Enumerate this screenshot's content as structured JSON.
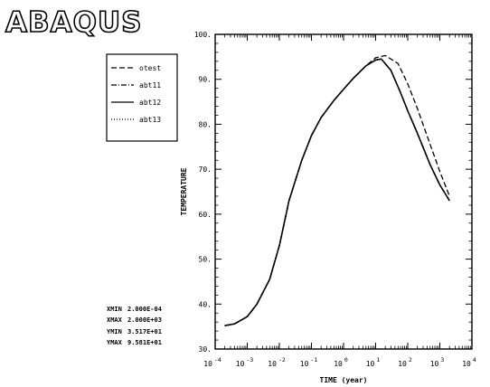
{
  "logo": "ABAQUS",
  "chart_data": {
    "type": "line",
    "title": "",
    "xlabel": "TIME (year)",
    "ylabel": "TEMPERATURE",
    "xscale": "log",
    "xlim": [
      0.0001,
      10000
    ],
    "ylim": [
      30,
      100
    ],
    "grid": false,
    "legend_position": "top-left",
    "x_tick_labels": [
      "10 -4",
      "10 -3",
      "10 -2",
      "10 -1",
      "10 0",
      "10 1",
      "10 2",
      "10 3",
      "10 4"
    ],
    "y_tick_labels": [
      "30.",
      "40.",
      "50.",
      "60.",
      "70.",
      "80.",
      "90.",
      "100."
    ],
    "series": [
      {
        "name": "otest",
        "dash": "6,3",
        "x": [
          0.0002,
          0.0004,
          0.001,
          0.002,
          0.005,
          0.01,
          0.02,
          0.05,
          0.1,
          0.2,
          0.5,
          1,
          2,
          5,
          10,
          20,
          50,
          100,
          200,
          500,
          1000,
          2000
        ],
        "y": [
          35.2,
          35.6,
          37.2,
          40,
          45.5,
          53,
          63,
          72,
          77.5,
          81.5,
          85.3,
          87.8,
          90.2,
          93,
          94.8,
          95.3,
          93.5,
          89,
          83.5,
          75.5,
          69.5,
          64
        ]
      },
      {
        "name": "abt11",
        "dash": "6,2,1,2",
        "x": [
          0.0002,
          0.0004,
          0.001,
          0.002,
          0.005,
          0.01,
          0.02,
          0.05,
          0.1,
          0.2,
          0.5,
          1,
          2,
          5,
          10,
          15,
          30,
          60,
          100,
          200,
          500,
          1000,
          2000
        ],
        "y": [
          35.2,
          35.6,
          37.2,
          40,
          45.5,
          53,
          63,
          72,
          77.5,
          81.5,
          85.3,
          87.8,
          90.2,
          93,
          94.3,
          94.5,
          92,
          87,
          83,
          78,
          71,
          66.5,
          63
        ]
      },
      {
        "name": "abt12",
        "dash": "",
        "x": [
          0.0002,
          0.0004,
          0.001,
          0.002,
          0.005,
          0.01,
          0.02,
          0.05,
          0.1,
          0.2,
          0.5,
          1,
          2,
          5,
          10,
          15,
          30,
          60,
          100,
          200,
          500,
          1000,
          2000
        ],
        "y": [
          35.2,
          35.6,
          37.2,
          40,
          45.5,
          53,
          63,
          72,
          77.5,
          81.5,
          85.3,
          87.8,
          90.2,
          93,
          94.3,
          94.5,
          92,
          87,
          83,
          78,
          71,
          66.5,
          63
        ]
      },
      {
        "name": "abt13",
        "dash": "1,2",
        "x": [
          0.0002,
          0.0004,
          0.001,
          0.002,
          0.005,
          0.01,
          0.02,
          0.05,
          0.1,
          0.2,
          0.5,
          1,
          2,
          5,
          10,
          15,
          30,
          60,
          100,
          200,
          500,
          1000,
          2000
        ],
        "y": [
          35.2,
          35.6,
          37.2,
          40,
          45.5,
          53,
          63,
          72,
          77.5,
          81.5,
          85.3,
          87.8,
          90.2,
          93,
          94.3,
          94.5,
          92,
          87,
          83,
          78,
          71,
          66.5,
          63
        ]
      }
    ],
    "stats": [
      {
        "key": "XMIN",
        "value": "2.000E-04"
      },
      {
        "key": "XMAX",
        "value": "2.000E+03"
      },
      {
        "key": "YMIN",
        "value": "3.517E+01"
      },
      {
        "key": "YMAX",
        "value": "9.581E+01"
      }
    ],
    "colors": {
      "line": "#000000",
      "background": "#ffffff"
    }
  }
}
